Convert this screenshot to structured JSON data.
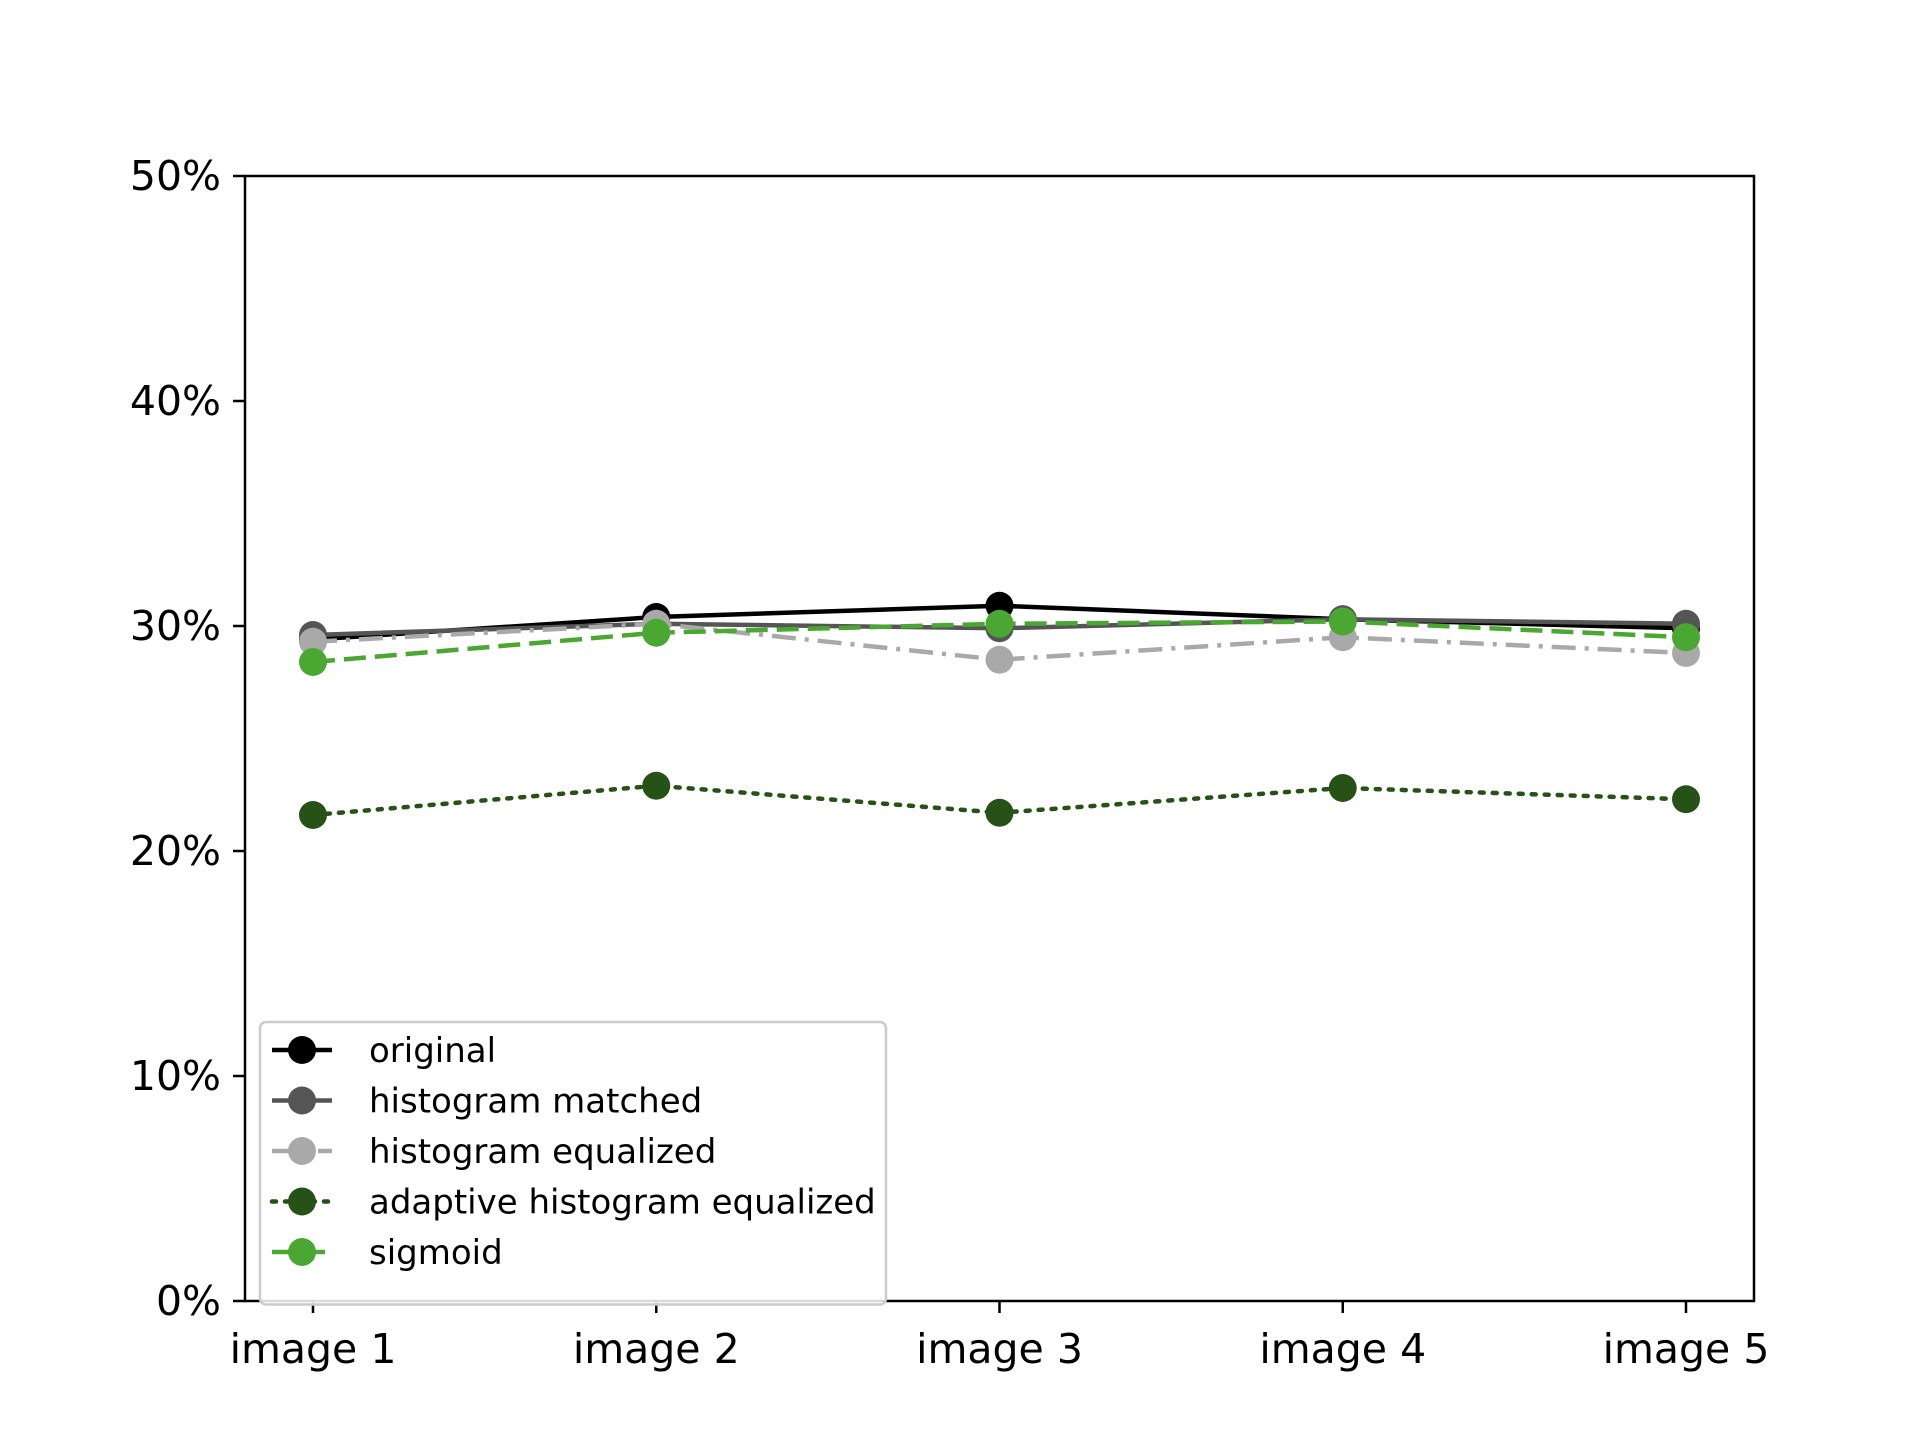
{
  "chart_data": {
    "type": "line",
    "title": "",
    "xlabel": "",
    "ylabel": "",
    "categories": [
      "image 1",
      "image 2",
      "image 3",
      "image 4",
      "image 5"
    ],
    "ylim": [
      0,
      50
    ],
    "yticks": [
      0,
      10,
      20,
      30,
      40,
      50
    ],
    "ytick_labels": [
      "0%",
      "10%",
      "20%",
      "30%",
      "40%",
      "50%"
    ],
    "grid": false,
    "legend_position": "lower-left",
    "series": [
      {
        "name": "original",
        "values": [
          29.4,
          30.4,
          30.9,
          30.3,
          29.9
        ],
        "color": "#000000",
        "line_style": "solid"
      },
      {
        "name": "histogram matched",
        "values": [
          29.6,
          30.1,
          29.9,
          30.3,
          30.1
        ],
        "color": "#555555",
        "line_style": "solid"
      },
      {
        "name": "histogram equalized",
        "values": [
          29.3,
          30.1,
          28.5,
          29.5,
          28.8
        ],
        "color": "#a9a9a9",
        "line_style": "dashdot"
      },
      {
        "name": "adaptive histogram equalized",
        "values": [
          21.6,
          22.9,
          21.7,
          22.8,
          22.3
        ],
        "color": "#265218",
        "line_style": "dotted"
      },
      {
        "name": "sigmoid",
        "values": [
          28.4,
          29.7,
          30.1,
          30.2,
          29.5
        ],
        "color": "#4aa832",
        "line_style": "dashed"
      }
    ]
  }
}
